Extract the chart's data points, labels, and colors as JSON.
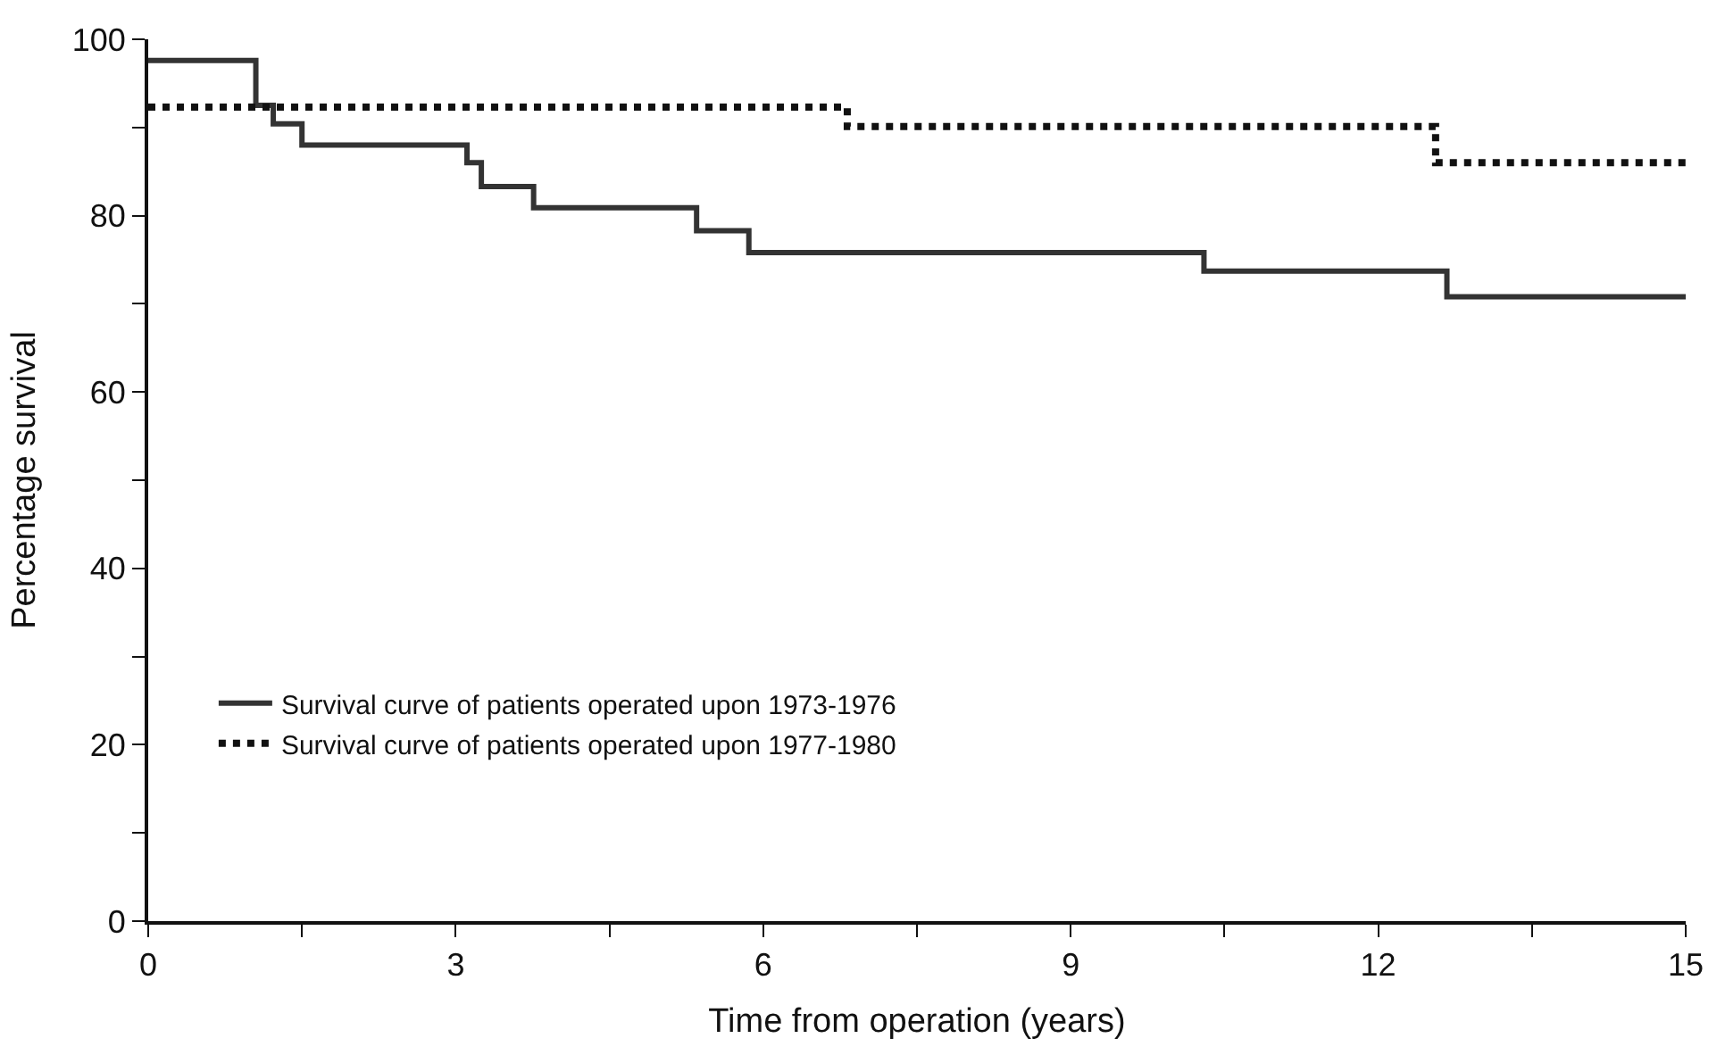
{
  "chart_data": {
    "type": "step",
    "xlabel": "Time from operation (years)",
    "ylabel": "Percentage survival",
    "xlim": [
      0,
      15
    ],
    "ylim": [
      0,
      100
    ],
    "xticks": [
      0,
      {
        "value": 1.5,
        "label": null
      },
      3,
      {
        "value": 4.5,
        "label": null
      },
      6,
      {
        "value": 7.5,
        "label": null
      },
      9,
      {
        "value": 10.5,
        "label": null
      },
      12,
      {
        "value": 13.5,
        "label": null
      },
      15
    ],
    "yticks": [
      0,
      {
        "value": 10,
        "label": null
      },
      20,
      {
        "value": 30,
        "label": null
      },
      40,
      {
        "value": 50,
        "label": null
      },
      60,
      {
        "value": 70,
        "label": null
      },
      80,
      {
        "value": 90,
        "label": null
      },
      100
    ],
    "legend": "bottom left",
    "series": [
      {
        "name": "Survival curve of patients operated upon 1973-1976",
        "color": "#333333",
        "line_style": "solid",
        "x": [
          0,
          1.05,
          1.22,
          1.5,
          3.11,
          3.25,
          3.76,
          5.35,
          5.86,
          10.3,
          12.67,
          15
        ],
        "values": [
          97.6,
          92.5,
          90.4,
          88.0,
          86.0,
          83.3,
          80.9,
          78.3,
          75.8,
          73.7,
          70.8,
          70.8
        ]
      },
      {
        "name": "Survival curve of patients operated upon 1977-1980",
        "color": "#111111",
        "line_style": "dotted",
        "x": [
          0,
          6.82,
          12.56,
          15
        ],
        "values": [
          92.3,
          90.1,
          86.0,
          86.0
        ]
      }
    ]
  }
}
